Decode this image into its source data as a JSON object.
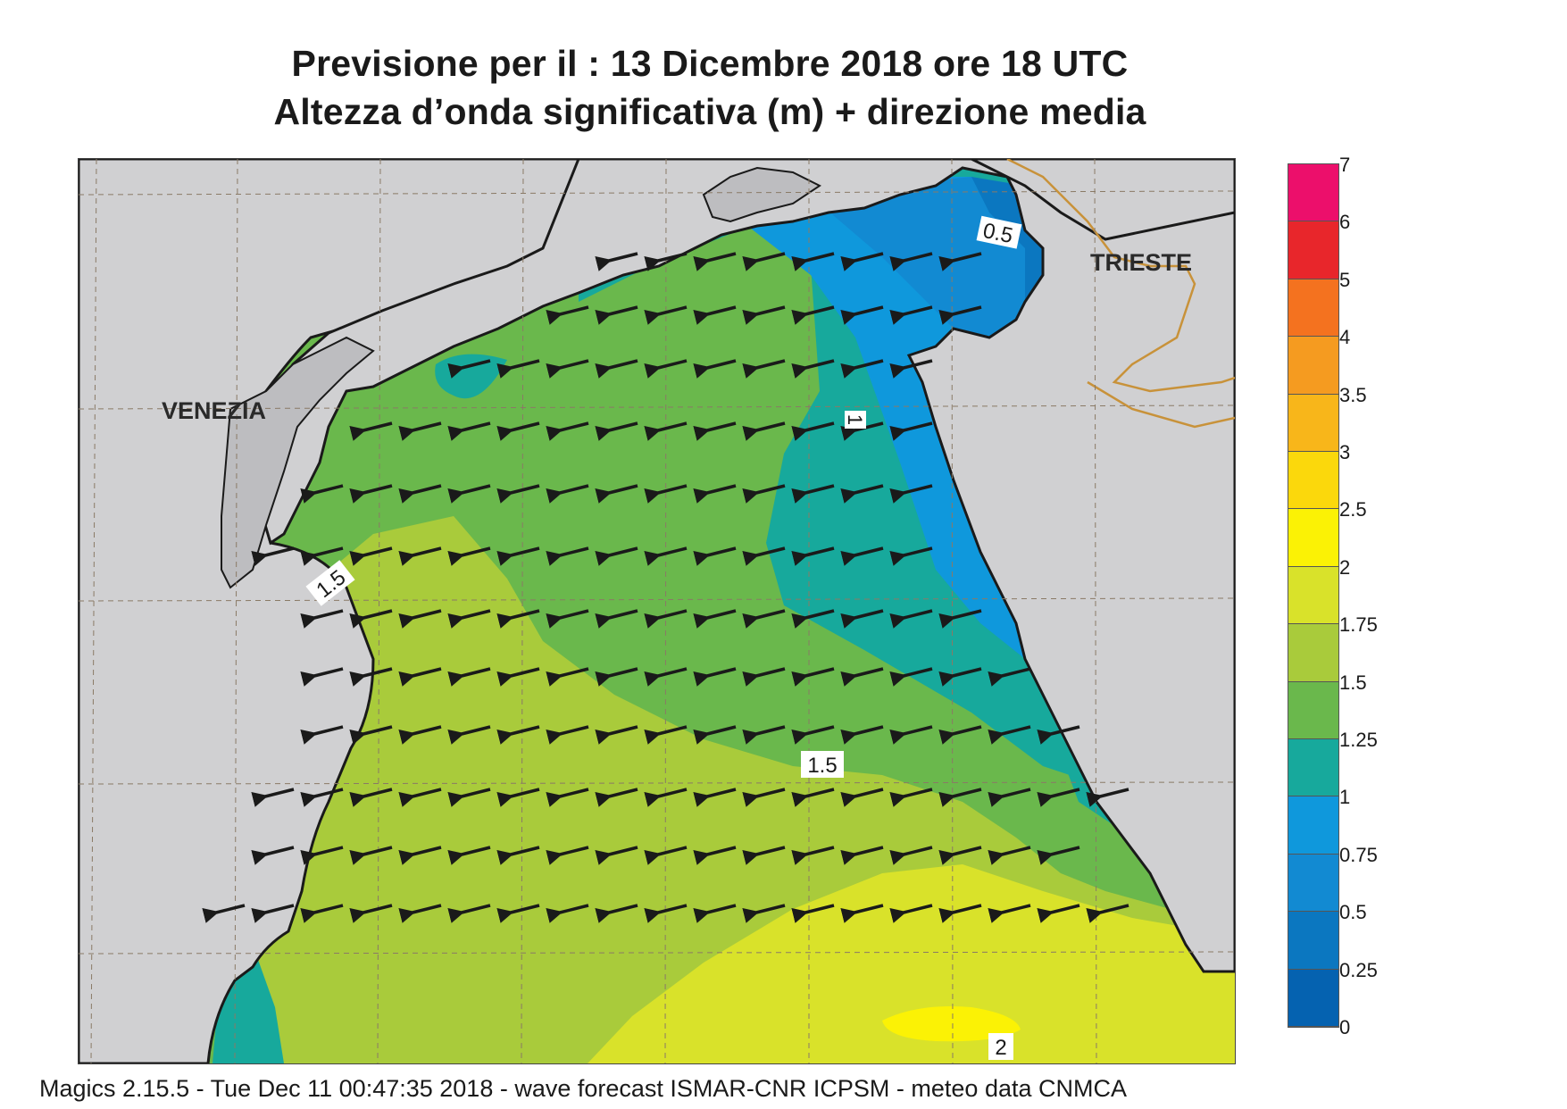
{
  "title": {
    "line1": "Previsione per il  :  13 Dicembre  2018   ore 18 UTC",
    "line2": "Altezza d’onda significativa (m) + direzione media"
  },
  "map": {
    "city_labels": [
      "VENEZIA",
      "TRIESTE"
    ],
    "contour_labels": [
      "0.5",
      "1",
      "1.5",
      "1.5",
      "2"
    ],
    "wave_direction": "westward",
    "colors": {
      "land": "#d0d0d2",
      "coast": "#1a1a1a",
      "border": "#c8923a",
      "grid": "#8a7a66"
    }
  },
  "legend": {
    "labels": [
      "7",
      "6",
      "5",
      "4",
      "3.5",
      "3",
      "2.5",
      "2",
      "1.75",
      "1.5",
      "1.25",
      "1",
      "0.75",
      "0.5",
      "0.25",
      "0"
    ],
    "colors": [
      "#ec0f6b",
      "#e8262b",
      "#f4721f",
      "#f59b20",
      "#f8b61a",
      "#fbd80c",
      "#fbf205",
      "#d9e22a",
      "#a9cb3b",
      "#6ab84c",
      "#17a99c",
      "#0f98dc",
      "#128ad2",
      "#0b77c0",
      "#0562b0"
    ]
  },
  "footer": "Magics 2.15.5 - Tue Dec 11 00:47:35 2018 - wave forecast  ISMAR-CNR  ICPSM - meteo data   CNMCA"
}
